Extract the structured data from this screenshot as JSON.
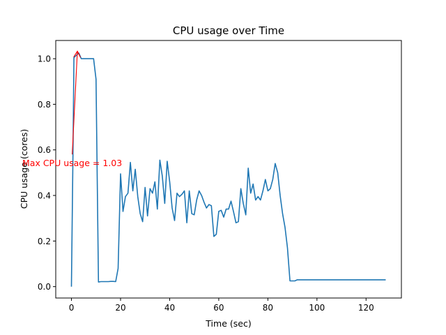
{
  "chart_data": {
    "type": "line",
    "title": "CPU usage over Time",
    "xlabel": "Time (sec)",
    "ylabel": "CPU usage (cores)",
    "xlim": [
      -6.4,
      134.4
    ],
    "ylim": [
      -0.05,
      1.08
    ],
    "xticks": [
      0,
      20,
      40,
      60,
      80,
      100,
      120
    ],
    "yticks": [
      0.0,
      0.2,
      0.4,
      0.6,
      0.8,
      1.0
    ],
    "xtick_labels": [
      "0",
      "20",
      "40",
      "60",
      "80",
      "100",
      "120"
    ],
    "ytick_labels": [
      "0.0",
      "0.2",
      "0.4",
      "0.6",
      "0.8",
      "1.0"
    ],
    "grid": false,
    "line_color": "#1f77b4",
    "annotation_color": "#ff0000",
    "annotation": {
      "text": "Max CPU usage = 1.03",
      "point": [
        2.4,
        1.03
      ],
      "text_anchor_point": [
        0.3,
        0.58
      ]
    },
    "series": [
      {
        "x": [
          0,
          0.6,
          1,
          2,
          3,
          4,
          5,
          6,
          7,
          8,
          9,
          10,
          11,
          12,
          13,
          14,
          15,
          16,
          17,
          18,
          19,
          20,
          21,
          22,
          23,
          24,
          25,
          26,
          27,
          28,
          29,
          30,
          31,
          32,
          33,
          34,
          35,
          36,
          37,
          38,
          39,
          40,
          41,
          42,
          43,
          44,
          45,
          46,
          47,
          48,
          49,
          50,
          51,
          52,
          53,
          54,
          55,
          56,
          57,
          58,
          59,
          60,
          61,
          62,
          63,
          64,
          65,
          66,
          67,
          68,
          69,
          70,
          71,
          72,
          73,
          74,
          75,
          76,
          77,
          78,
          79,
          80,
          81,
          82,
          83,
          84,
          85,
          86,
          87,
          88,
          89,
          90,
          91,
          92,
          93,
          94,
          95,
          96,
          97,
          98,
          99,
          100,
          101,
          102,
          103,
          104,
          105,
          106,
          107,
          108,
          109,
          110,
          111,
          112,
          113,
          114,
          115,
          116,
          117,
          118,
          119,
          120,
          121,
          122,
          123,
          124,
          125,
          126,
          127,
          128
        ],
        "y": [
          0.0,
          0.58,
          1.005,
          1.015,
          1.025,
          1.0,
          1.0,
          1.0,
          1.0,
          1.0,
          1.0,
          0.91,
          0.02,
          0.022,
          0.022,
          0.022,
          0.022,
          0.023,
          0.023,
          0.022,
          0.08,
          0.495,
          0.33,
          0.395,
          0.41,
          0.545,
          0.42,
          0.515,
          0.395,
          0.32,
          0.285,
          0.435,
          0.31,
          0.43,
          0.41,
          0.46,
          0.34,
          0.555,
          0.485,
          0.365,
          0.55,
          0.46,
          0.345,
          0.29,
          0.41,
          0.395,
          0.405,
          0.42,
          0.28,
          0.42,
          0.32,
          0.315,
          0.38,
          0.42,
          0.4,
          0.37,
          0.345,
          0.36,
          0.355,
          0.22,
          0.23,
          0.33,
          0.335,
          0.305,
          0.34,
          0.34,
          0.375,
          0.33,
          0.28,
          0.285,
          0.43,
          0.365,
          0.315,
          0.52,
          0.41,
          0.45,
          0.38,
          0.395,
          0.38,
          0.42,
          0.47,
          0.42,
          0.43,
          0.47,
          0.54,
          0.5,
          0.4,
          0.32,
          0.26,
          0.17,
          0.025,
          0.025,
          0.025,
          0.03,
          0.03,
          0.03,
          0.03,
          0.03,
          0.03,
          0.03,
          0.03,
          0.03,
          0.03,
          0.03,
          0.03,
          0.03,
          0.03,
          0.03,
          0.03,
          0.03,
          0.03,
          0.03,
          0.03,
          0.03,
          0.03,
          0.03,
          0.03,
          0.03,
          0.03,
          0.03,
          0.03,
          0.03,
          0.03,
          0.03,
          0.03,
          0.03,
          0.03,
          0.03,
          0.03,
          0.03
        ]
      }
    ]
  }
}
